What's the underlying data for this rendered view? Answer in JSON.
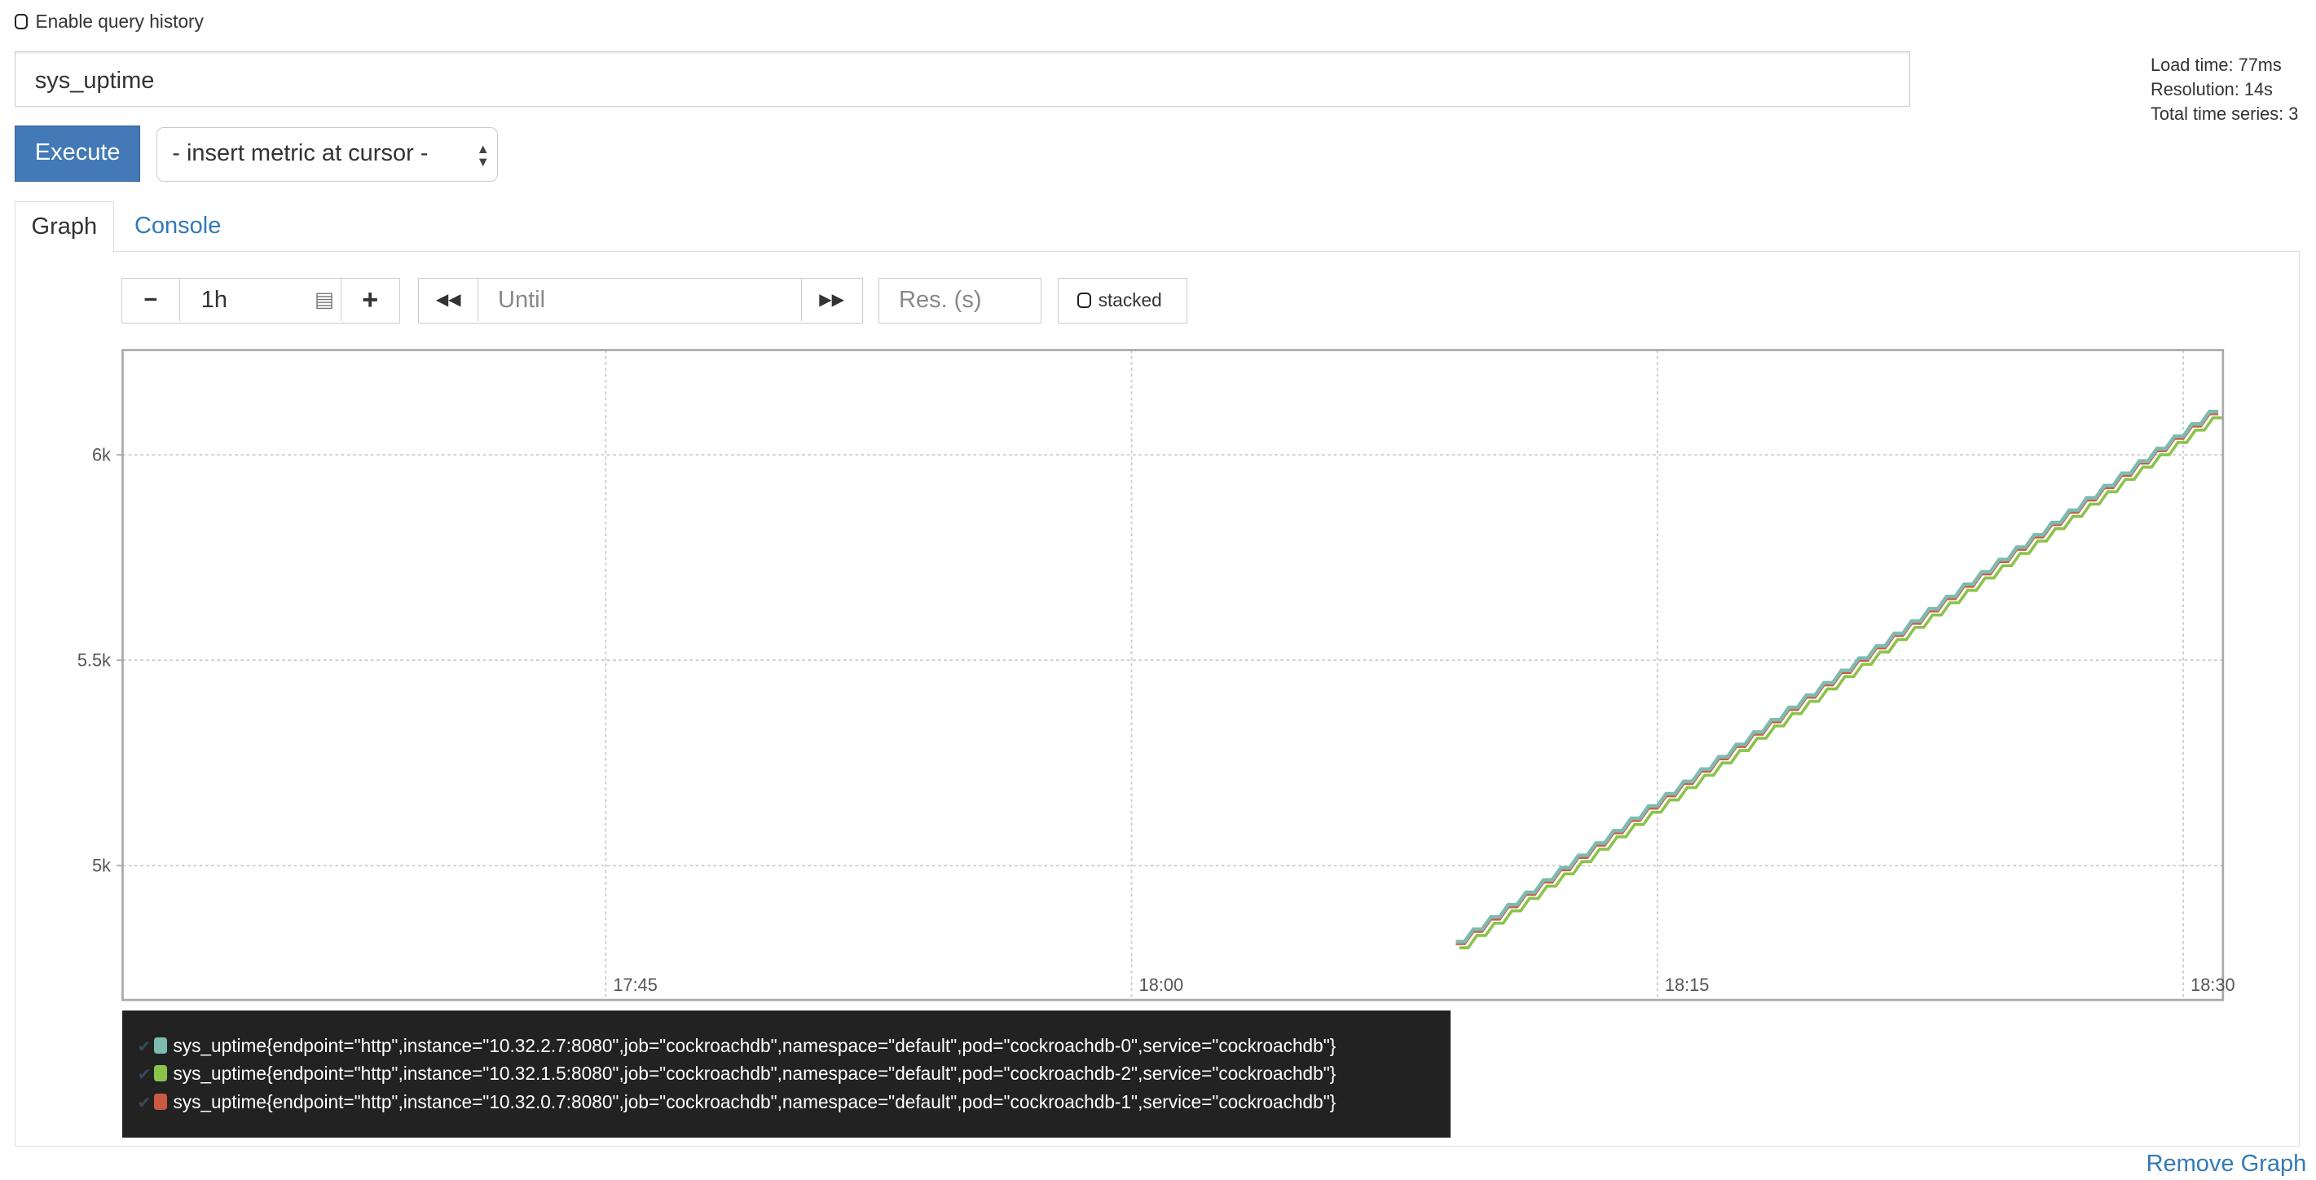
{
  "query_history": {
    "label": "Enable query history",
    "checked": false
  },
  "expression": {
    "value": "sys_uptime"
  },
  "execute_label": "Execute",
  "metric_select": {
    "selected": "- insert metric at cursor -"
  },
  "stats": {
    "load_time": "Load time: 77ms",
    "resolution": "Resolution: 14s",
    "total_series": "Total time series: 3"
  },
  "tabs": [
    {
      "label": "Graph",
      "active": true
    },
    {
      "label": "Console",
      "active": false
    }
  ],
  "graph_controls": {
    "range": "1h",
    "until_placeholder": "Until",
    "res_placeholder": "Res. (s)",
    "stacked_label": "stacked"
  },
  "remove_graph": "Remove Graph",
  "chart_data": {
    "type": "line",
    "x_ticks": [
      "17:45",
      "18:00",
      "18:15",
      "18:30"
    ],
    "y_ticks": [
      "5k",
      "5.5k",
      "6k"
    ],
    "xlim": [
      "17:31:13",
      "18:31:08"
    ],
    "ylim": [
      4673,
      6255
    ],
    "grid": true,
    "legend_placement": "bottom",
    "x": [
      "18:09:30",
      "18:10:00",
      "18:10:30",
      "18:11:00",
      "18:11:30",
      "18:12:00",
      "18:12:30",
      "18:13:00",
      "18:13:30",
      "18:14:00",
      "18:14:30",
      "18:15:00",
      "18:15:30",
      "18:16:00",
      "18:16:30",
      "18:17:00",
      "18:17:30",
      "18:18:00",
      "18:18:30",
      "18:19:00",
      "18:19:30",
      "18:20:00",
      "18:20:30",
      "18:21:00",
      "18:21:30",
      "18:22:00",
      "18:22:30",
      "18:23:00",
      "18:23:30",
      "18:24:00",
      "18:24:30",
      "18:25:00",
      "18:25:30",
      "18:26:00",
      "18:26:30",
      "18:27:00",
      "18:27:30",
      "18:28:00",
      "18:28:30",
      "18:29:00",
      "18:29:30",
      "18:30:00",
      "18:30:30",
      "18:31:00"
    ],
    "series": [
      {
        "name": "sys_uptime{endpoint=\"http\",instance=\"10.32.2.7:8080\",job=\"cockroachdb\",namespace=\"default\",pod=\"cockroachdb-0\",service=\"cockroachdb\"}",
        "color": "#7ebab0",
        "values": [
          4815,
          4845,
          4875,
          4905,
          4935,
          4965,
          4995,
          5025,
          5055,
          5085,
          5115,
          5145,
          5175,
          5205,
          5235,
          5265,
          5295,
          5325,
          5355,
          5385,
          5415,
          5445,
          5475,
          5505,
          5535,
          5565,
          5595,
          5625,
          5655,
          5685,
          5715,
          5745,
          5775,
          5805,
          5835,
          5865,
          5895,
          5925,
          5955,
          5985,
          6015,
          6045,
          6075,
          6105
        ]
      },
      {
        "name": "sys_uptime{endpoint=\"http\",instance=\"10.32.1.5:8080\",job=\"cockroachdb\",namespace=\"default\",pod=\"cockroachdb-2\",service=\"cockroachdb\"}",
        "color": "#8bc34a",
        "values": [
          4800,
          4830,
          4860,
          4890,
          4920,
          4950,
          4980,
          5010,
          5040,
          5070,
          5100,
          5130,
          5160,
          5190,
          5220,
          5250,
          5280,
          5310,
          5340,
          5370,
          5400,
          5430,
          5460,
          5490,
          5520,
          5550,
          5580,
          5610,
          5640,
          5670,
          5700,
          5730,
          5760,
          5790,
          5820,
          5850,
          5880,
          5910,
          5940,
          5970,
          6000,
          6030,
          6060,
          6090
        ]
      },
      {
        "name": "sys_uptime{endpoint=\"http\",instance=\"10.32.0.7:8080\",job=\"cockroachdb\",namespace=\"default\",pod=\"cockroachdb-1\",service=\"cockroachdb\"}",
        "color": "#cc5a42",
        "values": [
          4810,
          4840,
          4870,
          4900,
          4930,
          4960,
          4990,
          5020,
          5050,
          5080,
          5110,
          5140,
          5170,
          5200,
          5230,
          5260,
          5290,
          5320,
          5350,
          5380,
          5410,
          5440,
          5470,
          5500,
          5530,
          5560,
          5590,
          5620,
          5650,
          5680,
          5710,
          5740,
          5770,
          5800,
          5830,
          5860,
          5890,
          5920,
          5950,
          5980,
          6010,
          6040,
          6070,
          6100
        ]
      }
    ]
  }
}
